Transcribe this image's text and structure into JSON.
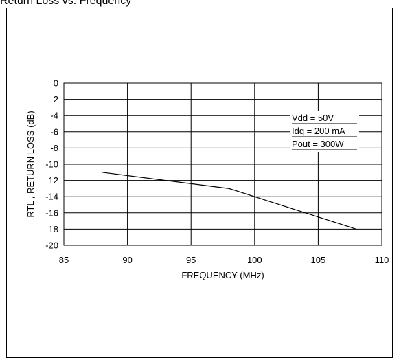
{
  "page": {
    "title": "Return Loss vs. Frequency"
  },
  "chart_data": {
    "type": "line",
    "title": "",
    "xlabel": "FREQUENCY (MHz)",
    "ylabel": "RTL , RETURN LOSS (dB)",
    "xlim": [
      85,
      110
    ],
    "ylim": [
      -20,
      0
    ],
    "xticks": [
      85,
      90,
      95,
      100,
      105,
      110
    ],
    "yticks": [
      0,
      -2,
      -4,
      -6,
      -8,
      -10,
      -12,
      -14,
      -16,
      -18,
      -20
    ],
    "grid": true,
    "series": [
      {
        "x": [
          88,
          98,
          108
        ],
        "y": [
          -11,
          -13,
          -18
        ]
      }
    ],
    "annotations": [
      "Vdd = 50V",
      "Idq = 200 mA",
      "Pout = 300W"
    ],
    "line_color": "#000000",
    "grid_color": "#000000"
  }
}
